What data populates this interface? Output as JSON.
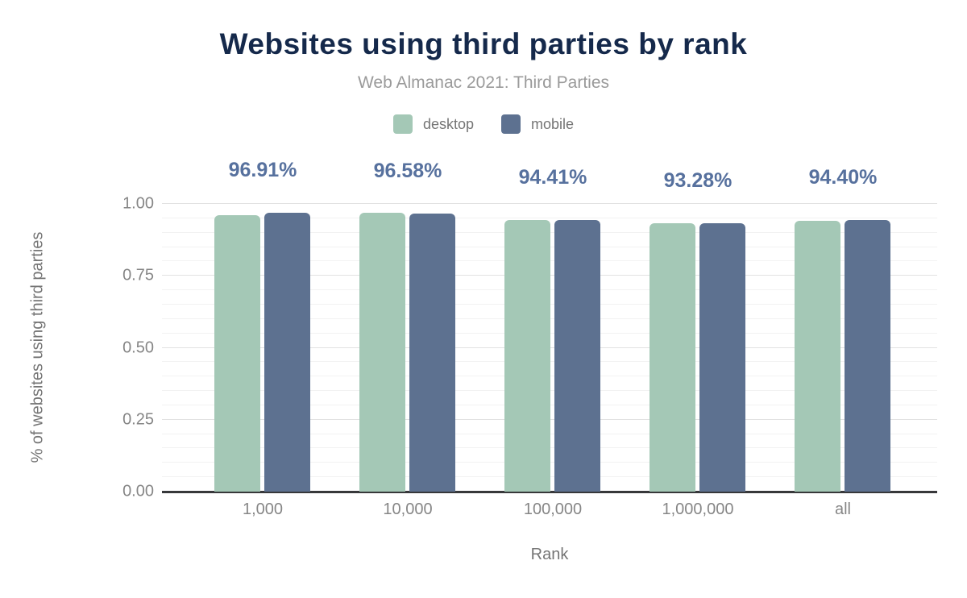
{
  "chart": {
    "title": "Websites using third parties by rank",
    "subtitle": "Web Almanac 2021: Third Parties",
    "legend": [
      {
        "label": "desktop",
        "color": "#a4c8b6"
      },
      {
        "label": "mobile",
        "color": "#5d7190"
      }
    ],
    "colors": {
      "title_text": "#15294b",
      "subtitle_text": "#9a9a9a",
      "axis_text": "#757575",
      "tick_text": "#868686",
      "data_label_text": "#57719e",
      "baseline": "#37383a",
      "major_gridline": "#e2e2e2",
      "minor_gridline": "#f2f2f2"
    }
  },
  "chart_data": {
    "type": "bar",
    "title": "Websites using third parties by rank",
    "subtitle": "Web Almanac 2021: Third Parties",
    "categories": [
      "1,000",
      "10,000",
      "100,000",
      "1,000,000",
      "all"
    ],
    "series": [
      {
        "name": "desktop",
        "color": "#a4c8b6",
        "values": [
          0.96,
          0.968,
          0.945,
          0.934,
          0.941
        ]
      },
      {
        "name": "mobile",
        "color": "#5d7190",
        "values": [
          0.9691,
          0.9658,
          0.9441,
          0.9328,
          0.944
        ]
      }
    ],
    "data_labels": [
      "96.91%",
      "96.58%",
      "94.41%",
      "93.28%",
      "94.40%"
    ],
    "data_labels_series": "mobile",
    "xlabel": "Rank",
    "ylabel": "% of websites using third parties",
    "ylim": [
      0,
      1
    ],
    "yticks": [
      0.0,
      0.25,
      0.5,
      0.75,
      1.0
    ],
    "ytick_labels": [
      "0.00",
      "0.25",
      "0.50",
      "0.75",
      "1.00"
    ],
    "minor_grid_step": 0.05,
    "grid": true,
    "legend_position": "top"
  }
}
